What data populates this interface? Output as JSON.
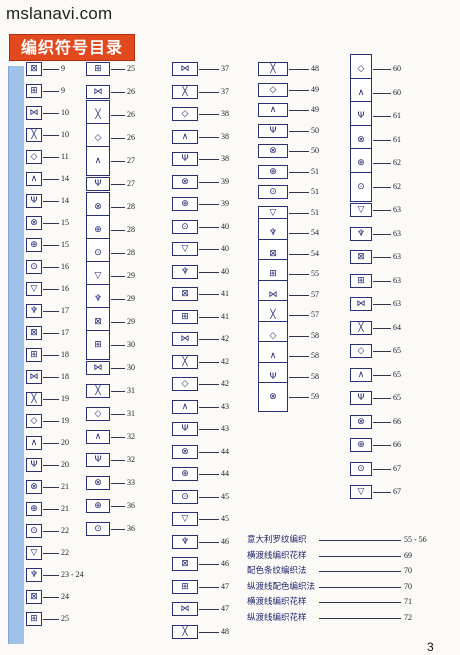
{
  "watermark": "mslanavi.com",
  "title": "编织符号目录",
  "page_number": "3",
  "columns": [
    {
      "entries": [
        {
          "icon": "box-I",
          "page": "9"
        },
        {
          "icon": "box-dash",
          "page": "9"
        },
        {
          "icon": "box-o",
          "page": "10"
        },
        {
          "icon": "box-q",
          "page": "10"
        },
        {
          "icon": "box-hook",
          "page": "11"
        },
        {
          "icon": "box-lambda",
          "page": "14"
        },
        {
          "icon": "box-lambda-dot",
          "page": "14"
        },
        {
          "icon": "box-lambda-bar",
          "page": "15"
        },
        {
          "icon": "box-lambda-o",
          "page": "15"
        },
        {
          "icon": "box-psi",
          "page": "16"
        },
        {
          "icon": "box-psi-o",
          "page": "16"
        },
        {
          "icon": "box-arrow",
          "page": "17"
        },
        {
          "icon": "box-arrow-o",
          "page": "17"
        },
        {
          "icon": "box-k",
          "page": "18"
        },
        {
          "icon": "box-k-o",
          "page": "18"
        },
        {
          "icon": "box-delta",
          "page": "19"
        },
        {
          "icon": "box-delta-o",
          "page": "19"
        },
        {
          "icon": "box-triangle",
          "page": "20"
        },
        {
          "icon": "box-triangle-o",
          "page": "20"
        },
        {
          "icon": "box-h",
          "page": "21"
        },
        {
          "icon": "box-h-o",
          "page": "21"
        },
        {
          "icon": "box-t",
          "page": "22"
        },
        {
          "icon": "box-t-o",
          "page": "22"
        },
        {
          "icon": "box-v",
          "page": "23 - 24"
        },
        {
          "icon": "box-cross",
          "page": "24"
        },
        {
          "icon": "box-v-o",
          "page": "25"
        }
      ]
    },
    {
      "entries": [
        {
          "icon": "cable",
          "page": "25"
        },
        {
          "icon": "eye",
          "page": "26"
        },
        {
          "icon": "bobble",
          "page": "26"
        },
        {
          "icon": "grid-bobble",
          "page": "26"
        },
        {
          "icon": "grid-bobble-2",
          "page": "27"
        },
        {
          "icon": "eye-2",
          "page": "27"
        },
        {
          "icon": "grid-3",
          "page": "28"
        },
        {
          "icon": "grid-4",
          "page": "28"
        },
        {
          "icon": "grid-5",
          "page": "28"
        },
        {
          "icon": "grid-6",
          "page": "29"
        },
        {
          "icon": "grid-7",
          "page": "29"
        },
        {
          "icon": "tall-v",
          "page": "29"
        },
        {
          "icon": "tall-v-2",
          "page": "30"
        },
        {
          "icon": "rings",
          "page": "30"
        },
        {
          "icon": "o-cross",
          "page": "31"
        },
        {
          "icon": "o-ring",
          "page": "31"
        },
        {
          "icon": "oval",
          "page": "32"
        },
        {
          "icon": "ring-dot",
          "page": "32"
        },
        {
          "icon": "spiral",
          "page": "33"
        },
        {
          "icon": "x-box",
          "page": "36"
        },
        {
          "icon": "x-box-2",
          "page": "36"
        }
      ]
    },
    {
      "entries": [
        {
          "icon": "x-cross",
          "page": "37"
        },
        {
          "icon": "x-cross-2",
          "page": "37"
        },
        {
          "icon": "cross-left",
          "page": "38"
        },
        {
          "icon": "cross-right",
          "page": "38"
        },
        {
          "icon": "cross-3",
          "page": "38"
        },
        {
          "icon": "cross-4",
          "page": "39"
        },
        {
          "icon": "cross-5",
          "page": "39"
        },
        {
          "icon": "slash-n",
          "page": "40"
        },
        {
          "icon": "slash-n-2",
          "page": "40"
        },
        {
          "icon": "cross-6",
          "page": "40"
        },
        {
          "icon": "cross-7",
          "page": "41"
        },
        {
          "icon": "cross-8",
          "page": "41"
        },
        {
          "icon": "cross-9",
          "page": "42"
        },
        {
          "icon": "cross-10",
          "page": "42"
        },
        {
          "icon": "cross-11",
          "page": "42"
        },
        {
          "icon": "cross-12",
          "page": "43"
        },
        {
          "icon": "cross-13",
          "page": "43"
        },
        {
          "icon": "cross-14",
          "page": "44"
        },
        {
          "icon": "cross-15",
          "page": "44"
        },
        {
          "icon": "cross-16",
          "page": "45"
        },
        {
          "icon": "cross-17",
          "page": "45"
        },
        {
          "icon": "cross-18",
          "page": "46"
        },
        {
          "icon": "cross-19",
          "page": "46"
        },
        {
          "icon": "cross-20",
          "page": "47"
        },
        {
          "icon": "cross-21",
          "page": "47"
        },
        {
          "icon": "cross-22",
          "page": "48"
        }
      ]
    },
    {
      "entries": [
        {
          "icon": "wide-cross",
          "page": "48"
        },
        {
          "icon": "wide-cross-2",
          "page": "49"
        },
        {
          "icon": "wide-cross-3",
          "page": "49"
        },
        {
          "icon": "wide-cross-4",
          "page": "50"
        },
        {
          "icon": "wide-cross-5",
          "page": "50"
        },
        {
          "icon": "wide-cross-6",
          "page": "51"
        },
        {
          "icon": "wide-cross-7",
          "page": "51"
        },
        {
          "icon": "arch",
          "page": "51"
        },
        {
          "icon": "arch-2",
          "page": "54"
        },
        {
          "icon": "arch-3",
          "page": "54"
        },
        {
          "icon": "arch-4",
          "page": "55"
        },
        {
          "icon": "arch-5",
          "page": "57"
        },
        {
          "icon": "tall-arch",
          "page": "57"
        },
        {
          "icon": "tall-arch-2",
          "page": "58"
        },
        {
          "icon": "loop",
          "page": "58"
        },
        {
          "icon": "leaf",
          "page": "58"
        },
        {
          "icon": "fan",
          "page": "59"
        }
      ]
    },
    {
      "entries": [
        {
          "icon": "v-tall",
          "page": "60"
        },
        {
          "icon": "v-tall-2",
          "page": "60"
        },
        {
          "icon": "v-tall-3",
          "page": "61"
        },
        {
          "icon": "v-tall-4",
          "page": "61"
        },
        {
          "icon": "shell",
          "page": "62"
        },
        {
          "icon": "shell-grid",
          "page": "62"
        },
        {
          "icon": "small-v",
          "page": "63"
        },
        {
          "icon": "small-w",
          "page": "63"
        },
        {
          "icon": "small-x",
          "page": "63"
        },
        {
          "icon": "bars",
          "page": "63"
        },
        {
          "icon": "bars-2",
          "page": "63"
        },
        {
          "icon": "bars-3",
          "page": "64"
        },
        {
          "icon": "bars-4",
          "page": "65"
        },
        {
          "icon": "bars-5",
          "page": "65"
        },
        {
          "icon": "bars-6",
          "page": "65"
        },
        {
          "icon": "bars-7",
          "page": "66"
        },
        {
          "icon": "bars-8",
          "page": "66"
        },
        {
          "icon": "bars-9",
          "page": "67"
        },
        {
          "icon": "bars-10",
          "page": "67"
        }
      ]
    }
  ],
  "index": [
    {
      "label": "意大利罗纹编织",
      "page": "55 - 56"
    },
    {
      "label": "横渡线编织花样",
      "page": "69"
    },
    {
      "label": "配色条纹编织法",
      "page": "70"
    },
    {
      "label": "纵渡线配色编织法",
      "page": "70"
    },
    {
      "label": "横渡线编织花样",
      "page": "71"
    },
    {
      "label": "纵渡线编织花样",
      "page": "72"
    }
  ]
}
